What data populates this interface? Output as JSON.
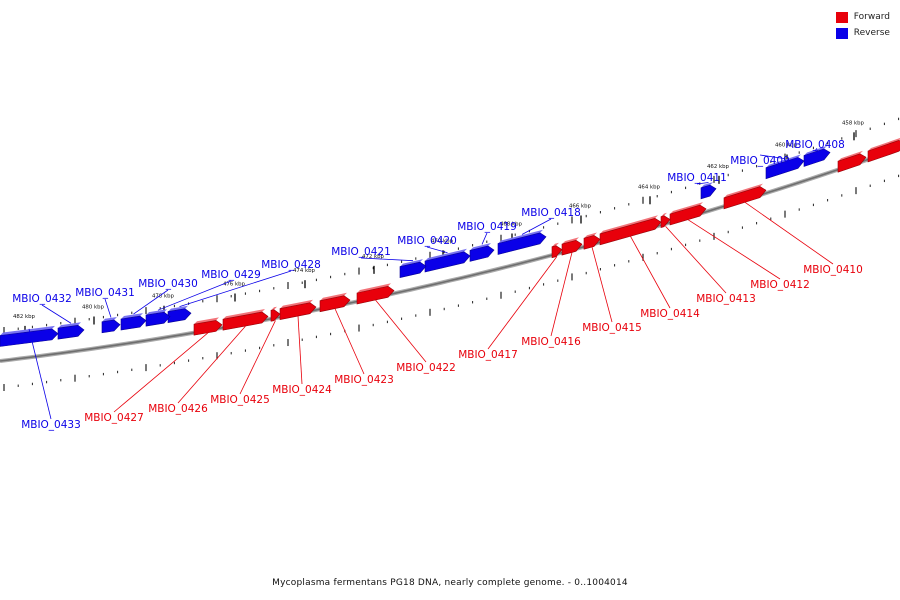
{
  "legend": {
    "forward_label": "Forward",
    "reverse_label": "Reverse",
    "forward_color": "#e8000b",
    "reverse_color": "#0a00e8"
  },
  "caption": "Mycoplasma fermentans PG18 DNA, nearly complete genome. - 0..1004014",
  "ticks": [
    {
      "label": "482 kbp"
    },
    {
      "label": "480 kbp"
    },
    {
      "label": "478 kbp"
    },
    {
      "label": "476 kbp"
    },
    {
      "label": "474 kbp"
    },
    {
      "label": "472 kbp"
    },
    {
      "label": "470 kbp"
    },
    {
      "label": "468 kbp"
    },
    {
      "label": "466 kbp"
    },
    {
      "label": "464 kbp"
    },
    {
      "label": "462 kbp"
    },
    {
      "label": "460 kbp"
    },
    {
      "label": "458 kbp"
    }
  ],
  "genes": [
    {
      "name": "MBIO_0408",
      "strand": "reverse"
    },
    {
      "name": "MBIO_0409",
      "strand": "reverse"
    },
    {
      "name": "MBIO_0410",
      "strand": "forward"
    },
    {
      "name": "MBIO_0411",
      "strand": "reverse"
    },
    {
      "name": "MBIO_0412",
      "strand": "forward"
    },
    {
      "name": "MBIO_0413",
      "strand": "forward"
    },
    {
      "name": "MBIO_0414",
      "strand": "forward"
    },
    {
      "name": "MBIO_0415",
      "strand": "forward"
    },
    {
      "name": "MBIO_0416",
      "strand": "forward"
    },
    {
      "name": "MBIO_0417",
      "strand": "forward"
    },
    {
      "name": "MBIO_0418",
      "strand": "reverse"
    },
    {
      "name": "MBIO_0419",
      "strand": "reverse"
    },
    {
      "name": "MBIO_0420",
      "strand": "reverse"
    },
    {
      "name": "MBIO_0421",
      "strand": "reverse"
    },
    {
      "name": "MBIO_0422",
      "strand": "forward"
    },
    {
      "name": "MBIO_0423",
      "strand": "forward"
    },
    {
      "name": "MBIO_0424",
      "strand": "forward"
    },
    {
      "name": "MBIO_0425",
      "strand": "forward"
    },
    {
      "name": "MBIO_0426",
      "strand": "forward"
    },
    {
      "name": "MBIO_0427",
      "strand": "forward"
    },
    {
      "name": "MBIO_0428",
      "strand": "reverse"
    },
    {
      "name": "MBIO_0429",
      "strand": "reverse"
    },
    {
      "name": "MBIO_0430",
      "strand": "reverse"
    },
    {
      "name": "MBIO_0431",
      "strand": "reverse"
    },
    {
      "name": "MBIO_0432",
      "strand": "reverse"
    },
    {
      "name": "MBIO_0433",
      "strand": "reverse"
    }
  ]
}
